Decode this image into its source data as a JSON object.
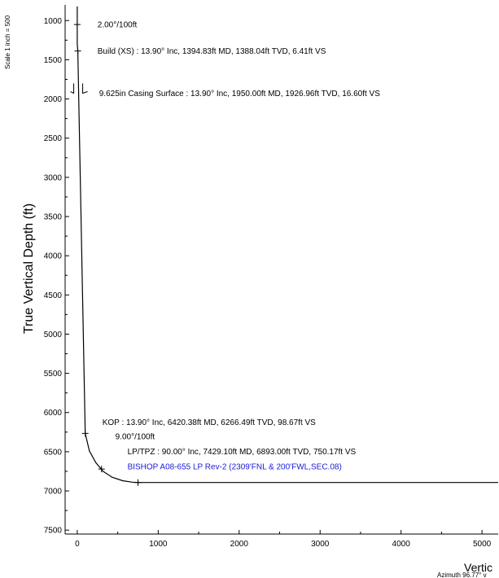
{
  "chart_data": {
    "type": "line",
    "scale_note": "Scale 1 inch = 500",
    "ylabel": "True Vertical Depth (ft)",
    "xlabel": "Vertic",
    "azimuth_note": "Azimuth 96.77° v",
    "xlim": [
      -150,
      5200
    ],
    "ylim": [
      7550,
      800
    ],
    "y_ticks": [
      1000,
      1500,
      2000,
      2500,
      3000,
      3500,
      4000,
      4500,
      5000,
      5500,
      6000,
      6500,
      7000,
      7500
    ],
    "x_ticks": [
      0,
      1000,
      2000,
      3000,
      4000,
      5000
    ],
    "series": [
      {
        "x": [
          0,
          0,
          0,
          6.41,
          16.6,
          98.67,
          150,
          230,
          320,
          430,
          560,
          680,
          750.17,
          5200
        ],
        "y": [
          820,
          1000,
          1300,
          1388.04,
          1926.96,
          6266.49,
          6490,
          6640,
          6750,
          6825,
          6870,
          6889,
          6893,
          6893
        ]
      }
    ],
    "markers": [
      {
        "x": 0,
        "y": 1050
      },
      {
        "x": 6.41,
        "y": 1388.04
      },
      {
        "x": 98.67,
        "y": 6266.49
      },
      {
        "x": 300,
        "y": 6720
      },
      {
        "x": 750.17,
        "y": 6893
      }
    ],
    "casing_symbol": {
      "x": 16.6,
      "y": 1926.96
    },
    "annotations": [
      {
        "text": "2.00°/100ft",
        "x": 250,
        "y": 1050
      },
      {
        "text": "Build (XS) : 13.90° Inc, 1394.83ft MD, 1388.04ft TVD, 6.41ft VS",
        "x": 250,
        "y": 1388
      },
      {
        "text": "9.625in Casing Surface : 13.90° Inc, 1950.00ft MD, 1926.96ft TVD, 16.60ft VS",
        "x": 270,
        "y": 1927
      },
      {
        "text": "KOP : 13.90° Inc, 6420.38ft MD, 6266.49ft TVD, 98.67ft VS",
        "x": 310,
        "y": 6120
      },
      {
        "text": "9.00°/100ft",
        "x": 470,
        "y": 6305
      },
      {
        "text": "LP/TPZ : 90.00° Inc, 7429.10ft MD, 6893.00ft TVD, 750.17ft VS",
        "x": 620,
        "y": 6495
      },
      {
        "text": "BISHOP A08-655 LP Rev-2 (2309'FNL & 200'FWL,SEC.08)",
        "x": 620,
        "y": 6688
      }
    ],
    "colors": {
      "line": "#000000",
      "target_text": "#1a1ad6"
    }
  }
}
